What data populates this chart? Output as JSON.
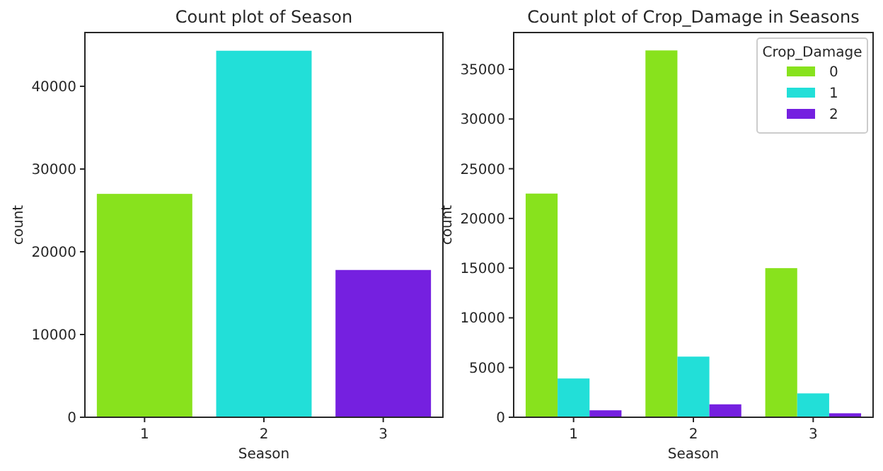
{
  "chart_data": [
    {
      "type": "bar",
      "title": "Count plot of Season",
      "xlabel": "Season",
      "ylabel": "count",
      "categories": [
        "1",
        "2",
        "3"
      ],
      "values": [
        27000,
        44300,
        17800
      ],
      "colors": [
        "#88e21d",
        "#22dfd8",
        "#7520e0"
      ],
      "ylim": [
        0,
        46500
      ],
      "yticks": [
        0,
        10000,
        20000,
        30000,
        40000
      ],
      "grid": false,
      "legend": false
    },
    {
      "type": "bar",
      "title": "Count plot of Crop_Damage in Seasons",
      "xlabel": "Season",
      "ylabel": "count",
      "legend_title": "Crop_Damage",
      "legend": "top right",
      "grid": false,
      "categories": [
        "1",
        "2",
        "3"
      ],
      "ylim": [
        0,
        38700
      ],
      "yticks": [
        0,
        5000,
        10000,
        15000,
        20000,
        25000,
        30000,
        35000
      ],
      "series": [
        {
          "name": "0",
          "color": "#88e21d",
          "values": [
            22500,
            36900,
            15000
          ]
        },
        {
          "name": "1",
          "color": "#22dfd8",
          "values": [
            3900,
            6100,
            2400
          ]
        },
        {
          "name": "2",
          "color": "#7520e0",
          "values": [
            700,
            1300,
            400
          ]
        }
      ]
    }
  ]
}
